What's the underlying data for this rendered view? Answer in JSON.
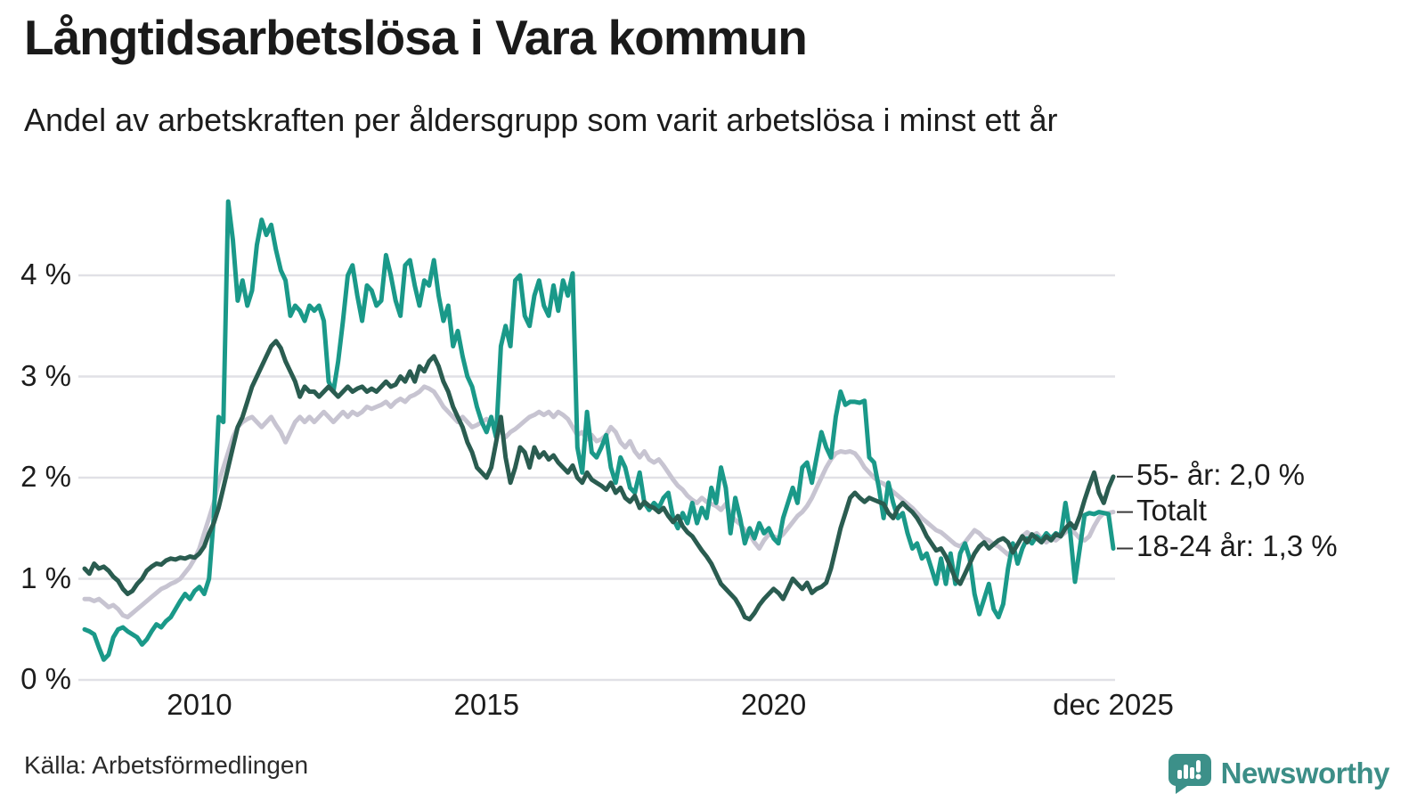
{
  "header": {
    "title": "Långtidsarbetslösa i Vara kommun",
    "subtitle": "Andel av arbetskraften per åldersgrupp som varit arbetslösa i minst ett år"
  },
  "footer": {
    "source": "Källa: Arbetsförmedlingen"
  },
  "branding": {
    "name": "Newsworthy",
    "icon": "bar-chart-speech-bubble-icon",
    "color": "#3c8e87"
  },
  "chart_data": {
    "type": "line",
    "frequency": "monthly",
    "x_start": "2008-01",
    "x_end": "2025-12",
    "ylim": [
      0,
      4.95
    ],
    "grid": true,
    "gridline_color": "#e1e1e6",
    "y_ticks": [
      {
        "label": "0 %",
        "value": 0
      },
      {
        "label": "1 %",
        "value": 1
      },
      {
        "label": "2 %",
        "value": 2
      },
      {
        "label": "3 %",
        "value": 3
      },
      {
        "label": "4 %",
        "value": 4
      }
    ],
    "x_ticks": [
      {
        "label": "2010",
        "month_index": 24
      },
      {
        "label": "2015",
        "month_index": 84
      },
      {
        "label": "2020",
        "month_index": 144
      },
      {
        "label": "dec 2025",
        "month_index": 215
      }
    ],
    "series": [
      {
        "name": "Totalt",
        "color": "#c7c4d1",
        "values": [
          0.8,
          0.8,
          0.78,
          0.8,
          0.76,
          0.72,
          0.74,
          0.7,
          0.64,
          0.62,
          0.66,
          0.7,
          0.74,
          0.78,
          0.82,
          0.86,
          0.9,
          0.92,
          0.95,
          0.97,
          1.0,
          1.06,
          1.12,
          1.2,
          1.3,
          1.45,
          1.6,
          1.75,
          1.95,
          2.1,
          2.25,
          2.4,
          2.5,
          2.55,
          2.58,
          2.6,
          2.55,
          2.5,
          2.55,
          2.6,
          2.52,
          2.45,
          2.35,
          2.45,
          2.55,
          2.6,
          2.55,
          2.6,
          2.55,
          2.6,
          2.65,
          2.6,
          2.55,
          2.6,
          2.65,
          2.6,
          2.65,
          2.62,
          2.65,
          2.7,
          2.68,
          2.7,
          2.72,
          2.75,
          2.7,
          2.75,
          2.78,
          2.75,
          2.8,
          2.82,
          2.85,
          2.9,
          2.88,
          2.85,
          2.78,
          2.7,
          2.65,
          2.6,
          2.55,
          2.6,
          2.55,
          2.5,
          2.52,
          2.55,
          2.58,
          2.55,
          2.5,
          2.45,
          2.4,
          2.45,
          2.48,
          2.52,
          2.56,
          2.6,
          2.62,
          2.65,
          2.62,
          2.65,
          2.6,
          2.65,
          2.62,
          2.58,
          2.5,
          2.42,
          2.45,
          2.38,
          2.42,
          2.36,
          2.38,
          2.42,
          2.5,
          2.45,
          2.35,
          2.3,
          2.36,
          2.26,
          2.2,
          2.26,
          2.18,
          2.15,
          2.18,
          2.12,
          2.05,
          1.98,
          1.92,
          1.88,
          1.82,
          1.78,
          1.75,
          1.8,
          1.76,
          1.74,
          1.72,
          1.68,
          1.74,
          1.64,
          1.58,
          1.54,
          1.48,
          1.44,
          1.36,
          1.3,
          1.38,
          1.44,
          1.42,
          1.4,
          1.44,
          1.5,
          1.56,
          1.62,
          1.66,
          1.72,
          1.8,
          1.9,
          2.0,
          2.1,
          2.18,
          2.24,
          2.26,
          2.25,
          2.26,
          2.24,
          2.18,
          2.1,
          2.05,
          2.0,
          1.96,
          1.94,
          1.9,
          1.86,
          1.82,
          1.78,
          1.74,
          1.7,
          1.65,
          1.6,
          1.56,
          1.52,
          1.48,
          1.46,
          1.42,
          1.38,
          1.34,
          1.32,
          1.36,
          1.42,
          1.48,
          1.45,
          1.4,
          1.38,
          1.34,
          1.32,
          1.28,
          1.24,
          1.28,
          1.34,
          1.42,
          1.46,
          1.42,
          1.45,
          1.4,
          1.36,
          1.4,
          1.38,
          1.42,
          1.46,
          1.5,
          1.45,
          1.4,
          1.38,
          1.42,
          1.52,
          1.6,
          1.65,
          1.65,
          1.66
        ]
      },
      {
        "name": "18-24 år",
        "color": "#1a9989",
        "values": [
          0.5,
          0.48,
          0.45,
          0.32,
          0.2,
          0.25,
          0.42,
          0.5,
          0.52,
          0.48,
          0.45,
          0.42,
          0.35,
          0.4,
          0.48,
          0.55,
          0.52,
          0.58,
          0.62,
          0.7,
          0.78,
          0.85,
          0.8,
          0.88,
          0.92,
          0.85,
          1.0,
          1.6,
          2.6,
          2.55,
          4.73,
          4.35,
          3.75,
          3.95,
          3.7,
          3.85,
          4.3,
          4.55,
          4.4,
          4.5,
          4.25,
          4.05,
          3.95,
          3.6,
          3.7,
          3.65,
          3.55,
          3.7,
          3.65,
          3.7,
          3.55,
          2.95,
          2.85,
          3.15,
          3.55,
          4.0,
          4.1,
          3.8,
          3.55,
          3.9,
          3.85,
          3.7,
          3.75,
          4.2,
          4.0,
          3.75,
          3.6,
          4.1,
          4.15,
          3.9,
          3.7,
          3.95,
          3.9,
          4.15,
          3.8,
          3.55,
          3.7,
          3.3,
          3.45,
          3.2,
          3.0,
          2.9,
          2.7,
          2.55,
          2.45,
          2.6,
          2.4,
          3.3,
          3.5,
          3.3,
          3.95,
          4.0,
          3.6,
          3.5,
          3.8,
          3.95,
          3.7,
          3.6,
          3.9,
          3.65,
          3.95,
          3.8,
          4.02,
          2.3,
          2.05,
          2.65,
          2.25,
          2.2,
          2.3,
          2.42,
          2.1,
          1.95,
          2.2,
          2.1,
          1.9,
          1.85,
          2.05,
          1.75,
          1.68,
          1.75,
          1.7,
          1.8,
          1.85,
          1.6,
          1.5,
          1.65,
          1.55,
          1.75,
          1.55,
          1.7,
          1.6,
          1.9,
          1.75,
          2.1,
          1.9,
          1.45,
          1.8,
          1.6,
          1.35,
          1.5,
          1.4,
          1.55,
          1.45,
          1.5,
          1.4,
          1.35,
          1.6,
          1.75,
          1.9,
          1.75,
          2.1,
          2.15,
          1.95,
          2.2,
          2.45,
          2.3,
          2.2,
          2.6,
          2.85,
          2.72,
          2.75,
          2.75,
          2.74,
          2.76,
          2.2,
          2.15,
          1.9,
          1.6,
          1.95,
          1.75,
          1.6,
          1.65,
          1.45,
          1.3,
          1.35,
          1.2,
          1.25,
          1.1,
          0.95,
          1.2,
          0.95,
          1.25,
          0.95,
          1.25,
          1.35,
          1.2,
          0.85,
          0.65,
          0.8,
          0.95,
          0.7,
          0.62,
          0.75,
          1.1,
          1.35,
          1.15,
          1.3,
          1.4,
          1.35,
          1.42,
          1.38,
          1.45,
          1.4,
          1.45,
          1.42,
          1.75,
          1.45,
          0.97,
          1.3,
          1.63,
          1.65,
          1.64,
          1.66,
          1.65,
          1.64,
          1.3
        ]
      },
      {
        "name": "55- år",
        "color": "#2a5c50",
        "values": [
          1.1,
          1.05,
          1.15,
          1.1,
          1.12,
          1.08,
          1.02,
          0.98,
          0.9,
          0.85,
          0.88,
          0.95,
          1.0,
          1.08,
          1.12,
          1.15,
          1.14,
          1.18,
          1.2,
          1.19,
          1.21,
          1.2,
          1.22,
          1.21,
          1.25,
          1.32,
          1.45,
          1.55,
          1.7,
          1.9,
          2.1,
          2.3,
          2.5,
          2.6,
          2.75,
          2.9,
          3.0,
          3.1,
          3.2,
          3.3,
          3.35,
          3.28,
          3.15,
          3.05,
          2.95,
          2.8,
          2.9,
          2.85,
          2.85,
          2.8,
          2.85,
          2.9,
          2.85,
          2.8,
          2.85,
          2.9,
          2.85,
          2.88,
          2.9,
          2.85,
          2.88,
          2.85,
          2.9,
          2.95,
          2.9,
          2.92,
          3.0,
          2.95,
          3.05,
          2.95,
          3.1,
          3.05,
          3.15,
          3.2,
          3.1,
          2.95,
          2.85,
          2.7,
          2.6,
          2.5,
          2.35,
          2.25,
          2.1,
          2.05,
          2.0,
          2.1,
          2.35,
          2.6,
          2.2,
          1.95,
          2.1,
          2.3,
          2.25,
          2.1,
          2.3,
          2.2,
          2.25,
          2.18,
          2.22,
          2.15,
          2.1,
          2.05,
          2.12,
          2.0,
          1.95,
          2.05,
          1.98,
          1.95,
          1.92,
          1.88,
          1.95,
          1.85,
          1.9,
          1.8,
          1.76,
          1.82,
          1.7,
          1.76,
          1.72,
          1.7,
          1.66,
          1.7,
          1.62,
          1.56,
          1.62,
          1.52,
          1.46,
          1.42,
          1.35,
          1.28,
          1.22,
          1.15,
          1.05,
          0.95,
          0.9,
          0.85,
          0.8,
          0.72,
          0.62,
          0.6,
          0.66,
          0.74,
          0.8,
          0.85,
          0.9,
          0.86,
          0.8,
          0.9,
          1.0,
          0.95,
          0.9,
          0.96,
          0.86,
          0.9,
          0.92,
          0.96,
          1.1,
          1.3,
          1.5,
          1.65,
          1.8,
          1.85,
          1.8,
          1.76,
          1.8,
          1.78,
          1.76,
          1.74,
          1.65,
          1.6,
          1.7,
          1.75,
          1.7,
          1.66,
          1.6,
          1.52,
          1.42,
          1.35,
          1.28,
          1.3,
          1.22,
          1.12,
          1.0,
          0.95,
          1.05,
          1.15,
          1.25,
          1.32,
          1.36,
          1.3,
          1.34,
          1.38,
          1.4,
          1.36,
          1.26,
          1.34,
          1.42,
          1.36,
          1.44,
          1.4,
          1.36,
          1.42,
          1.38,
          1.44,
          1.42,
          1.5,
          1.55,
          1.5,
          1.62,
          1.78,
          1.92,
          2.05,
          1.85,
          1.75,
          1.9,
          2.01
        ]
      }
    ],
    "annotations": [
      {
        "text": "55- år: 2,0 %",
        "series": "55- år"
      },
      {
        "text": "Totalt",
        "series": "Totalt"
      },
      {
        "text": "18-24 år: 1,3 %",
        "series": "18-24 år"
      }
    ]
  }
}
